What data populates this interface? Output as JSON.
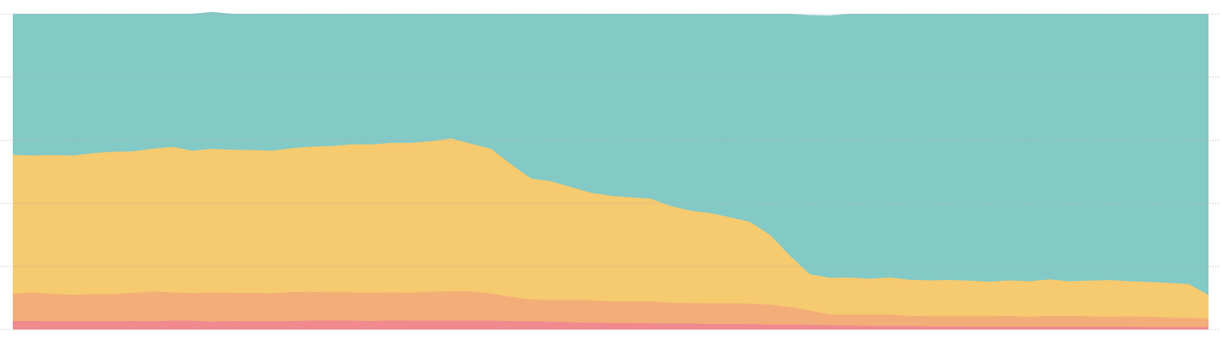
{
  "chart_data": {
    "type": "area",
    "stacked": true,
    "normalized": true,
    "grid": true,
    "ylim": [
      0,
      100
    ],
    "x": [
      0,
      1,
      2,
      3,
      4,
      5,
      6,
      7,
      8,
      9,
      10,
      11,
      12,
      13,
      14,
      15,
      16,
      17,
      18,
      19,
      20,
      21,
      22,
      23,
      24,
      25,
      26,
      27,
      28,
      29,
      30,
      31,
      32,
      33,
      34,
      35,
      36,
      37,
      38,
      39,
      40,
      41,
      42,
      43,
      44,
      45,
      46,
      47,
      48,
      49,
      50,
      51,
      52,
      53,
      54,
      55,
      56,
      57,
      58,
      59,
      60
    ],
    "series": [
      {
        "color": "#f08a8f",
        "values": [
          2.7,
          2.7,
          2.6,
          2.6,
          2.6,
          2.6,
          2.7,
          2.6,
          2.8,
          2.8,
          2.5,
          2.7,
          2.6,
          2.6,
          2.7,
          2.8,
          2.9,
          2.8,
          2.7,
          2.9,
          2.8,
          2.8,
          2.8,
          2.8,
          2.8,
          2.7,
          2.6,
          2.5,
          2.3,
          2.2,
          2.1,
          2.1,
          2.0,
          1.9,
          1.9,
          1.8,
          1.8,
          1.7,
          1.6,
          1.6,
          1.5,
          1.4,
          1.3,
          1.2,
          1.1,
          1.1,
          1.0,
          1.0,
          0.9,
          0.9,
          0.9,
          0.9,
          0.9,
          0.9,
          0.9,
          0.9,
          0.9,
          0.8,
          0.8,
          0.8,
          0.8
        ]
      },
      {
        "color": "#f3ad78",
        "values": [
          8.6,
          9.1,
          8.7,
          8.4,
          8.6,
          8.6,
          8.9,
          9.5,
          9.0,
          8.7,
          9.3,
          8.9,
          9.0,
          8.9,
          9.2,
          9.2,
          8.9,
          9.0,
          9.0,
          8.9,
          8.9,
          9.2,
          9.3,
          9.3,
          8.6,
          7.7,
          6.9,
          6.9,
          7.1,
          7.1,
          6.8,
          6.8,
          6.9,
          6.6,
          6.5,
          6.5,
          6.5,
          6.5,
          6.3,
          5.5,
          4.5,
          3.4,
          3.5,
          3.6,
          3.7,
          3.2,
          3.2,
          3.2,
          3.3,
          3.3,
          3.4,
          3.2,
          3.4,
          3.4,
          3.3,
          3.2,
          3.3,
          3.3,
          3.0,
          2.9,
          2.7
        ]
      },
      {
        "color": "#f6ca6e",
        "values": [
          44.1,
          43.4,
          44.0,
          44.2,
          44.7,
          45.2,
          44.9,
          45.2,
          46.1,
          45.2,
          45.5,
          45.4,
          45.3,
          45.2,
          45.6,
          46.0,
          46.4,
          46.9,
          47.0,
          47.4,
          47.5,
          47.7,
          48.5,
          46.8,
          45.9,
          42.0,
          38.4,
          37.6,
          35.8,
          34.1,
          33.5,
          33.0,
          32.6,
          30.7,
          29.3,
          28.6,
          27.3,
          25.9,
          22.1,
          16.3,
          11.5,
          11.6,
          11.7,
          11.3,
          11.7,
          11.5,
          11.4,
          11.5,
          11.3,
          11.0,
          11.3,
          11.2,
          11.6,
          11.0,
          11.3,
          11.6,
          11.1,
          11.0,
          11.0,
          10.7,
          7.5
        ]
      },
      {
        "color": "#83c9c6",
        "values": [
          44.6,
          44.8,
          44.7,
          44.8,
          44.1,
          43.6,
          43.5,
          42.7,
          42.1,
          43.3,
          43.3,
          43.0,
          43.1,
          43.3,
          42.5,
          42.0,
          41.8,
          41.3,
          41.3,
          40.8,
          40.8,
          40.3,
          39.4,
          41.1,
          42.7,
          47.6,
          52.1,
          53.0,
          54.8,
          56.6,
          57.6,
          58.1,
          58.5,
          60.8,
          62.3,
          63.1,
          64.4,
          65.9,
          70.0,
          76.6,
          82.1,
          83.1,
          83.5,
          83.9,
          83.5,
          84.2,
          84.4,
          84.3,
          84.5,
          84.8,
          84.4,
          84.7,
          84.1,
          84.7,
          84.5,
          84.3,
          84.7,
          84.9,
          85.2,
          85.6,
          89.0
        ]
      }
    ]
  }
}
